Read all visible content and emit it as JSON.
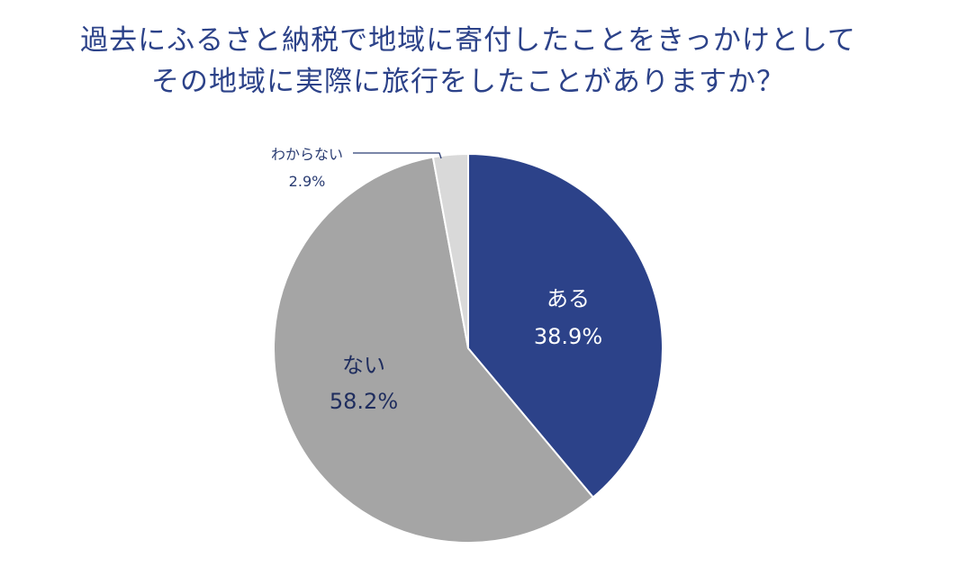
{
  "chart_data": {
    "type": "pie",
    "title_lines": [
      "過去にふるさと納税で地域に寄付したことをきっかけとして",
      "その地域に実際に旅行をしたことがありますか？"
    ],
    "slices": [
      {
        "name": "ある",
        "value": 38.9,
        "label": "38.9%",
        "color": "#2c4289"
      },
      {
        "name": "ない",
        "value": 58.2,
        "label": "58.2%",
        "color": "#a5a5a5"
      },
      {
        "name": "わからない",
        "value": 2.9,
        "label": "2.9%",
        "color": "#d9d9d9"
      }
    ],
    "start": "12 o'clock",
    "direction": "clockwise",
    "legend": "none",
    "label_colors": {
      "inside_dark": "#ffffff",
      "inside_light": "#1f2d5e",
      "outside": "#2b3d73"
    }
  }
}
